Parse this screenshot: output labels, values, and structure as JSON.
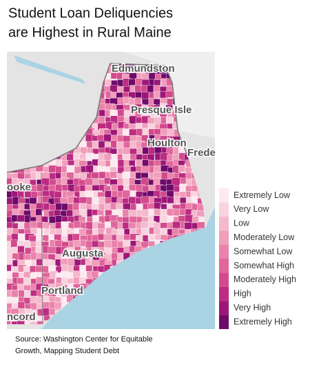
{
  "title": [
    "Student Loan Deliquencies",
    "are Highest in Rural Maine"
  ],
  "map": {
    "places": [
      {
        "label": "Edmundston"
      },
      {
        "label": "Presque Isle"
      },
      {
        "label": "Houlton"
      },
      {
        "label": "Frede"
      },
      {
        "label": "ooke"
      },
      {
        "label": "Augusta"
      },
      {
        "label": "Portland"
      },
      {
        "label": "ncord"
      }
    ]
  },
  "legend": {
    "items": [
      {
        "label": "Extremely Low",
        "color": "#fde9ef"
      },
      {
        "label": "Very Low",
        "color": "#f9d3df"
      },
      {
        "label": "Low",
        "color": "#f5b9cd"
      },
      {
        "label": "Moderately Low",
        "color": "#f09ebb"
      },
      {
        "label": "Somewhat Low",
        "color": "#ea83ab"
      },
      {
        "label": "Somewhat High",
        "color": "#e0669b"
      },
      {
        "label": "Moderately High",
        "color": "#d24a8d"
      },
      {
        "label": "High",
        "color": "#bb2c82"
      },
      {
        "label": "Very High",
        "color": "#9c1777"
      },
      {
        "label": "Extremely High",
        "color": "#6e0a6a"
      }
    ]
  },
  "source": [
    "Source:  Washington Center for Equitable",
    "Growth, Mapping Student Debt"
  ]
}
